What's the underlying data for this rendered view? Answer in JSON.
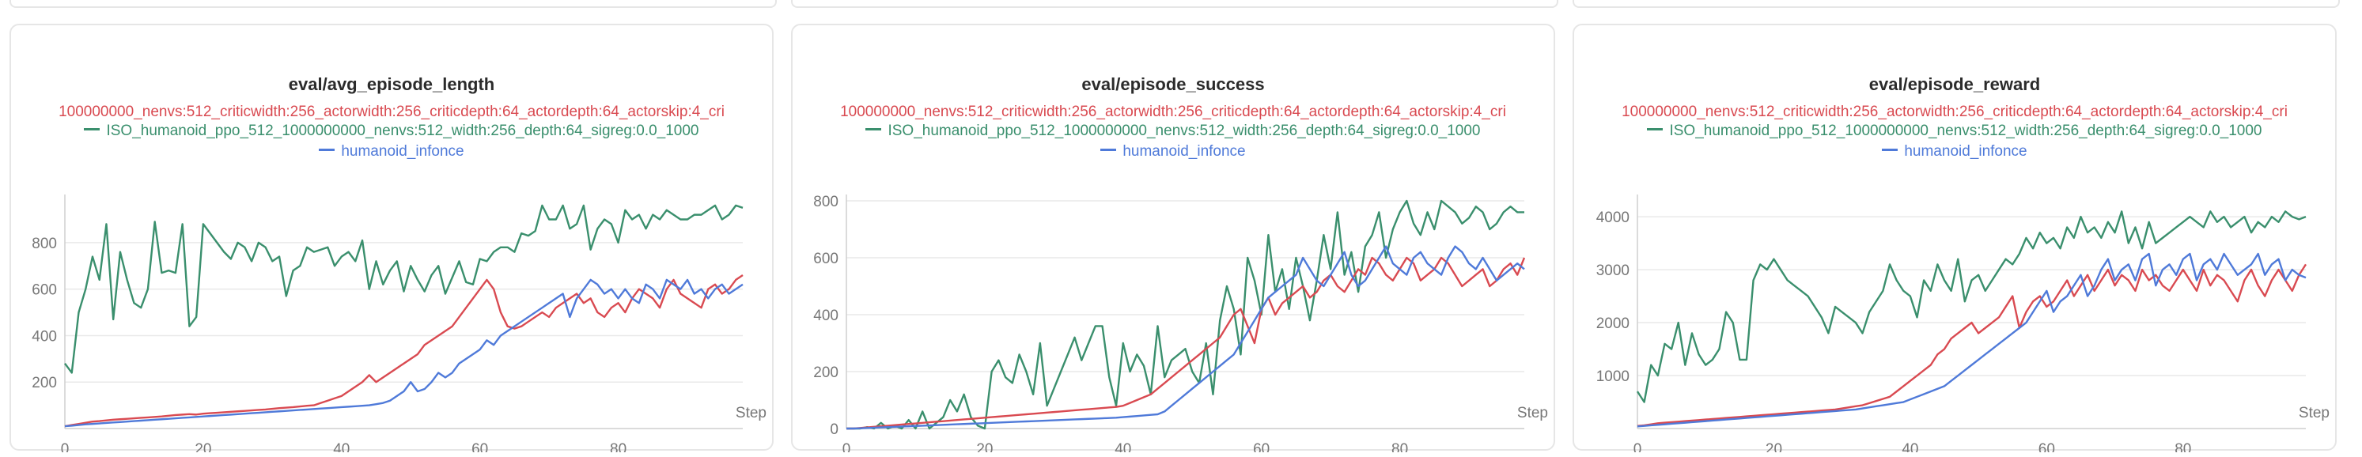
{
  "chart_data": [
    {
      "type": "line",
      "title": "eval/avg_episode_length",
      "xlabel": "Step",
      "legend_top": "100000000_nenvs:512_criticwidth:256_actorwidth:256_criticdepth:64_actordepth:64_actorskip:4_cri",
      "xticks": [
        0,
        20,
        40,
        60,
        80
      ],
      "yticks": [
        200,
        400,
        600,
        800
      ],
      "xlim": [
        0,
        98
      ],
      "ylim": [
        0,
        980
      ],
      "colors": {
        "green": "#3a8f6d",
        "red": "#d94a51",
        "blue": "#4f7ad9"
      },
      "series": [
        {
          "name": "ISO_humanoid_ppo_512_1000000000_nenvs:512_width:256_depth:64_sigreg:0.0_1000",
          "color": "#3a8f6d",
          "values": [
            280,
            240,
            500,
            600,
            740,
            640,
            880,
            470,
            760,
            640,
            540,
            520,
            600,
            890,
            670,
            680,
            670,
            880,
            440,
            480,
            880,
            840,
            800,
            760,
            730,
            800,
            780,
            720,
            800,
            780,
            720,
            740,
            570,
            680,
            700,
            780,
            760,
            770,
            780,
            700,
            740,
            760,
            720,
            810,
            600,
            720,
            620,
            680,
            720,
            590,
            700,
            640,
            590,
            660,
            700,
            580,
            650,
            720,
            630,
            620,
            730,
            720,
            760,
            780,
            780,
            760,
            840,
            830,
            850,
            960,
            900,
            900,
            960,
            860,
            880,
            960,
            770,
            860,
            900,
            880,
            800,
            940,
            900,
            920,
            860,
            920,
            900,
            940,
            920,
            900,
            900,
            920,
            920,
            940,
            960,
            900,
            920,
            960,
            950
          ]
        },
        {
          "name": "",
          "color": "#d94a51",
          "values": [
            10,
            15,
            20,
            25,
            30,
            32,
            35,
            38,
            40,
            42,
            44,
            46,
            48,
            50,
            52,
            55,
            58,
            60,
            62,
            60,
            64,
            66,
            68,
            70,
            72,
            74,
            76,
            78,
            80,
            82,
            85,
            88,
            90,
            92,
            95,
            98,
            100,
            110,
            120,
            130,
            140,
            160,
            180,
            200,
            230,
            200,
            220,
            240,
            260,
            280,
            300,
            320,
            360,
            380,
            400,
            420,
            440,
            480,
            520,
            560,
            600,
            640,
            600,
            500,
            440,
            430,
            440,
            460,
            480,
            500,
            480,
            520,
            540,
            560,
            580,
            540,
            560,
            500,
            480,
            520,
            540,
            500,
            560,
            600,
            580,
            560,
            520,
            600,
            640,
            580,
            560,
            540,
            520,
            600,
            620,
            580,
            600,
            640,
            660
          ]
        },
        {
          "name": "humanoid_infonce",
          "color": "#4f7ad9",
          "values": [
            10,
            12,
            15,
            18,
            20,
            22,
            24,
            26,
            28,
            30,
            32,
            34,
            36,
            38,
            40,
            42,
            44,
            46,
            48,
            50,
            52,
            54,
            56,
            58,
            60,
            62,
            64,
            66,
            68,
            70,
            72,
            74,
            76,
            78,
            80,
            82,
            84,
            86,
            88,
            90,
            92,
            94,
            96,
            98,
            100,
            105,
            110,
            120,
            140,
            160,
            200,
            160,
            170,
            200,
            240,
            220,
            240,
            280,
            300,
            320,
            340,
            380,
            360,
            400,
            420,
            440,
            460,
            480,
            500,
            520,
            540,
            560,
            580,
            480,
            560,
            600,
            640,
            620,
            580,
            600,
            560,
            600,
            560,
            540,
            620,
            600,
            560,
            640,
            620,
            600,
            640,
            580,
            600,
            560,
            600,
            620,
            580,
            600,
            620
          ]
        }
      ]
    },
    {
      "type": "line",
      "title": "eval/episode_success",
      "xlabel": "Step",
      "legend_top": "100000000_nenvs:512_criticwidth:256_actorwidth:256_criticdepth:64_actordepth:64_actorskip:4_cri",
      "xticks": [
        0,
        20,
        40,
        60,
        80
      ],
      "yticks": [
        0,
        200,
        400,
        600,
        800
      ],
      "xlim": [
        0,
        98
      ],
      "ylim": [
        0,
        800
      ],
      "colors": {
        "green": "#3a8f6d",
        "red": "#d94a51",
        "blue": "#4f7ad9"
      },
      "series": [
        {
          "name": "ISO_humanoid_ppo_512_1000000000_nenvs:512_width:256_depth:64_sigreg:0.0_1000",
          "color": "#3a8f6d",
          "values": [
            0,
            0,
            0,
            5,
            0,
            20,
            0,
            10,
            0,
            30,
            0,
            60,
            0,
            20,
            40,
            100,
            60,
            120,
            40,
            10,
            0,
            200,
            240,
            180,
            160,
            260,
            200,
            120,
            300,
            80,
            140,
            200,
            260,
            320,
            240,
            300,
            360,
            360,
            180,
            80,
            300,
            200,
            260,
            220,
            120,
            360,
            180,
            240,
            260,
            280,
            200,
            160,
            300,
            120,
            380,
            500,
            420,
            260,
            600,
            520,
            400,
            680,
            480,
            560,
            420,
            600,
            500,
            380,
            520,
            680,
            560,
            760,
            540,
            620,
            480,
            640,
            680,
            760,
            600,
            700,
            760,
            800,
            720,
            680,
            760,
            700,
            800,
            780,
            760,
            720,
            740,
            780,
            760,
            700,
            720,
            760,
            780,
            760,
            760
          ]
        },
        {
          "name": "",
          "color": "#d94a51",
          "values": [
            0,
            0,
            2,
            4,
            6,
            8,
            10,
            12,
            14,
            16,
            18,
            20,
            22,
            24,
            26,
            28,
            30,
            32,
            34,
            36,
            38,
            40,
            42,
            44,
            46,
            48,
            50,
            52,
            54,
            56,
            58,
            60,
            62,
            64,
            66,
            68,
            70,
            72,
            74,
            76,
            80,
            90,
            100,
            110,
            120,
            140,
            160,
            180,
            200,
            220,
            240,
            260,
            280,
            300,
            320,
            360,
            400,
            420,
            360,
            300,
            420,
            460,
            400,
            440,
            460,
            480,
            500,
            460,
            480,
            520,
            540,
            500,
            480,
            520,
            560,
            540,
            600,
            580,
            540,
            520,
            560,
            600,
            580,
            520,
            540,
            560,
            600,
            580,
            540,
            500,
            520,
            540,
            560,
            500,
            520,
            560,
            580,
            540,
            600
          ]
        },
        {
          "name": "humanoid_infonce",
          "color": "#4f7ad9",
          "values": [
            0,
            0,
            1,
            2,
            3,
            4,
            5,
            6,
            7,
            8,
            9,
            10,
            11,
            12,
            13,
            14,
            15,
            16,
            17,
            18,
            19,
            20,
            21,
            22,
            23,
            24,
            25,
            26,
            27,
            28,
            29,
            30,
            31,
            32,
            33,
            34,
            35,
            36,
            37,
            38,
            40,
            42,
            44,
            46,
            48,
            50,
            60,
            80,
            100,
            120,
            140,
            160,
            180,
            200,
            220,
            240,
            260,
            300,
            340,
            380,
            420,
            460,
            480,
            500,
            520,
            540,
            600,
            560,
            520,
            500,
            540,
            580,
            620,
            540,
            500,
            520,
            560,
            600,
            640,
            580,
            560,
            540,
            600,
            620,
            580,
            560,
            540,
            600,
            640,
            620,
            580,
            560,
            600,
            560,
            520,
            540,
            560,
            580,
            560
          ]
        }
      ]
    },
    {
      "type": "line",
      "title": "eval/episode_reward",
      "xlabel": "Step",
      "legend_top": "100000000_nenvs:512_criticwidth:256_actorwidth:256_criticdepth:64_actordepth:64_actorskip:4_cri",
      "xticks": [
        0,
        20,
        40,
        60,
        80
      ],
      "yticks": [
        1000,
        2000,
        3000,
        4000
      ],
      "xlim": [
        0,
        98
      ],
      "ylim": [
        0,
        4300
      ],
      "colors": {
        "green": "#3a8f6d",
        "red": "#d94a51",
        "blue": "#4f7ad9"
      },
      "series": [
        {
          "name": "ISO_humanoid_ppo_512_1000000000_nenvs:512_width:256_depth:64_sigreg:0.0_1000",
          "color": "#3a8f6d",
          "values": [
            700,
            500,
            1200,
            1000,
            1600,
            1500,
            2000,
            1200,
            1800,
            1400,
            1200,
            1300,
            1500,
            2200,
            2000,
            1300,
            1300,
            2800,
            3100,
            3000,
            3200,
            3000,
            2800,
            2700,
            2600,
            2500,
            2300,
            2100,
            1800,
            2300,
            2200,
            2100,
            2000,
            1800,
            2200,
            2400,
            2600,
            3100,
            2800,
            2600,
            2500,
            2100,
            2800,
            2600,
            3100,
            2800,
            2600,
            3200,
            2400,
            2800,
            2900,
            2600,
            2800,
            3000,
            3200,
            3100,
            3300,
            3600,
            3400,
            3700,
            3500,
            3600,
            3400,
            3800,
            3600,
            4000,
            3700,
            3800,
            3600,
            3900,
            3700,
            4100,
            3500,
            3800,
            3400,
            3900,
            3500,
            3600,
            3700,
            3800,
            3900,
            4000,
            3900,
            3800,
            4100,
            3900,
            4000,
            3800,
            3900,
            4000,
            3700,
            3900,
            3800,
            4000,
            3900,
            4100,
            4000,
            3950,
            4000
          ]
        },
        {
          "name": "",
          "color": "#d94a51",
          "values": [
            50,
            60,
            80,
            100,
            110,
            120,
            130,
            140,
            150,
            160,
            170,
            180,
            190,
            200,
            210,
            220,
            230,
            240,
            250,
            260,
            270,
            280,
            290,
            300,
            310,
            320,
            330,
            340,
            350,
            360,
            380,
            400,
            420,
            440,
            480,
            520,
            560,
            600,
            700,
            800,
            900,
            1000,
            1100,
            1200,
            1400,
            1500,
            1700,
            1800,
            1900,
            2000,
            1800,
            1900,
            2000,
            2100,
            2300,
            2500,
            1900,
            2200,
            2400,
            2500,
            2300,
            2400,
            2600,
            2800,
            2500,
            2700,
            2900,
            2600,
            2800,
            3000,
            2700,
            2900,
            2800,
            2600,
            3000,
            2800,
            2900,
            2700,
            2600,
            2800,
            3000,
            2800,
            2600,
            3000,
            2700,
            2900,
            2800,
            2600,
            2400,
            2800,
            3000,
            2700,
            2500,
            2800,
            3000,
            2800,
            2600,
            2900,
            3100
          ]
        },
        {
          "name": "humanoid_infonce",
          "color": "#4f7ad9",
          "values": [
            40,
            50,
            60,
            70,
            80,
            90,
            100,
            110,
            120,
            130,
            140,
            150,
            160,
            170,
            180,
            190,
            200,
            210,
            220,
            230,
            240,
            250,
            260,
            270,
            280,
            290,
            300,
            310,
            320,
            330,
            340,
            350,
            360,
            380,
            400,
            420,
            440,
            460,
            480,
            500,
            550,
            600,
            650,
            700,
            750,
            800,
            900,
            1000,
            1100,
            1200,
            1300,
            1400,
            1500,
            1600,
            1700,
            1800,
            1900,
            2000,
            2200,
            2400,
            2600,
            2200,
            2400,
            2500,
            2700,
            2900,
            2500,
            2700,
            3000,
            3200,
            2800,
            3000,
            3100,
            2800,
            3200,
            3300,
            2700,
            3000,
            3100,
            2900,
            3200,
            3300,
            2800,
            3100,
            3200,
            3000,
            3300,
            3100,
            2900,
            3000,
            3100,
            3300,
            2900,
            3100,
            3200,
            2800,
            3000,
            2900,
            2850
          ]
        }
      ]
    }
  ]
}
